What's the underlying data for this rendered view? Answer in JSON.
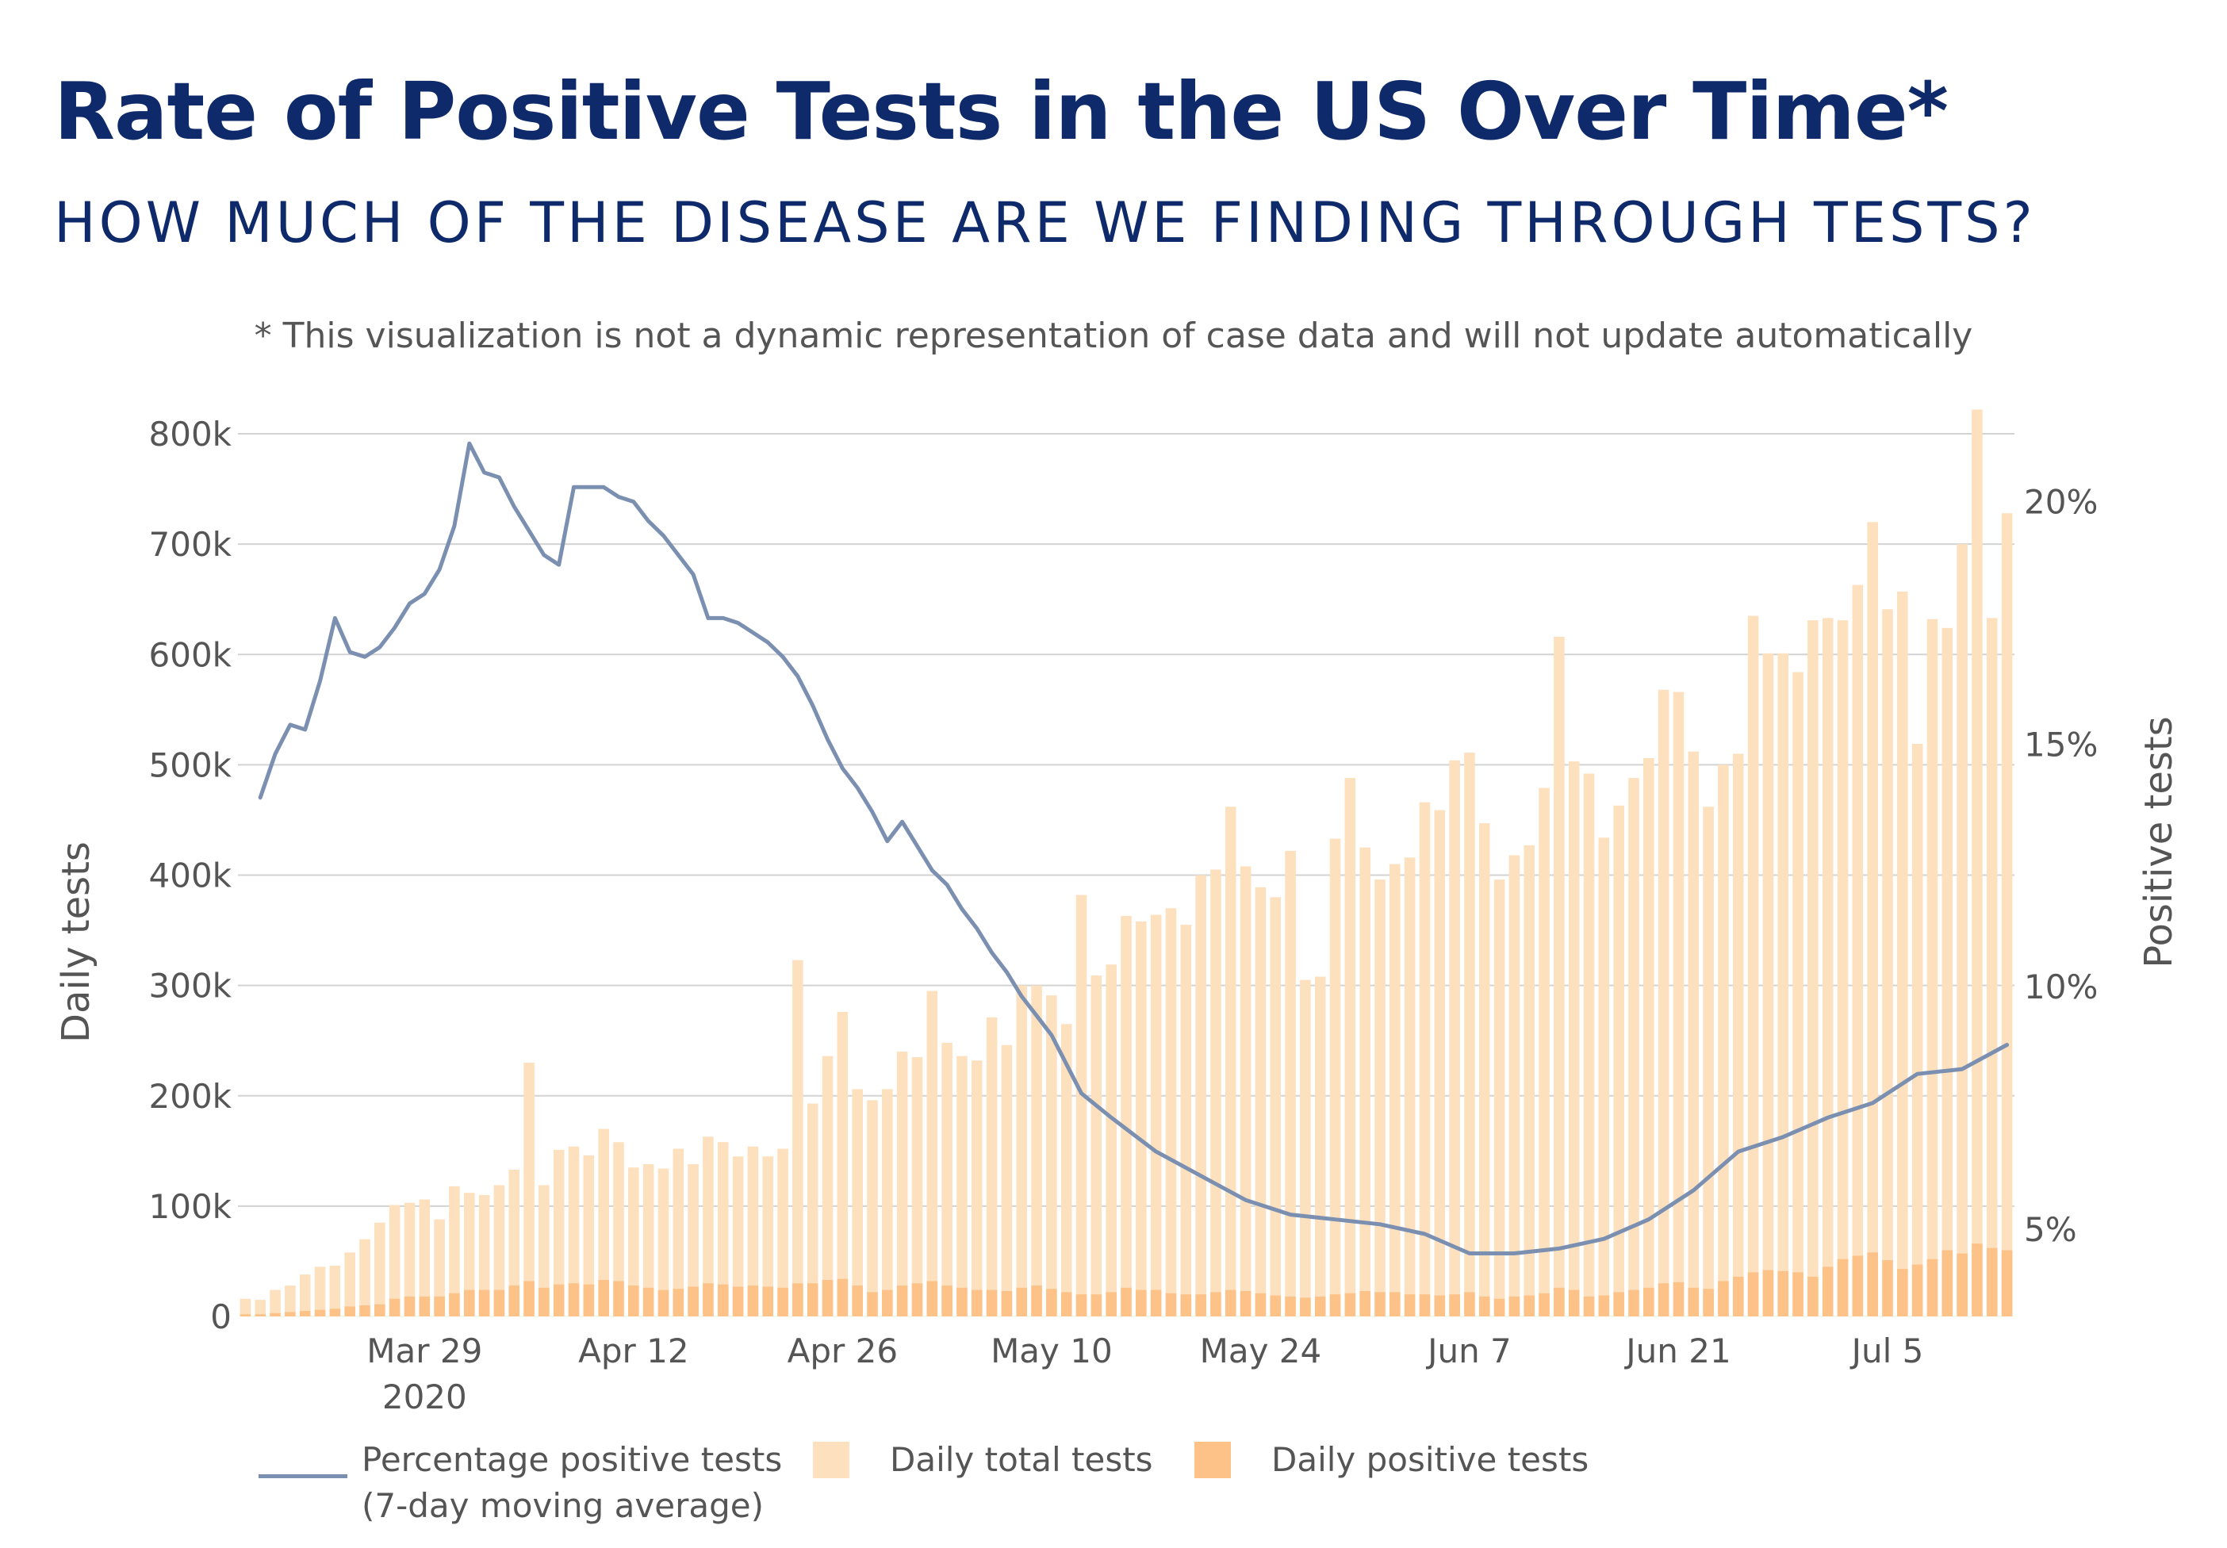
{
  "title": "Rate of Positive Tests in the US Over Time*",
  "subtitle": "HOW MUCH OF THE DISEASE ARE WE FINDING THROUGH TESTS?",
  "footnote": "* This visualization is not a dynamic representation of case data and will not update automatically",
  "legend": {
    "line_label_1": "Percentage positive tests",
    "line_label_2": "(7-day moving average)",
    "total_label": "Daily total tests",
    "positive_label": "Daily positive tests"
  },
  "colors": {
    "title": "#0f2a6b",
    "line": "#7b8fb1",
    "total_bar": "#fde0bd",
    "positive_bar": "#fcc287",
    "grid": "#d3d3d3",
    "axis_text": "#555555"
  },
  "chart_data": {
    "type": "bar",
    "x_start_date": "2020-03-17",
    "x_end_date": "2020-07-13",
    "xlabel": "",
    "x_ticks": [
      "Mar 29",
      "Apr 12",
      "Apr 26",
      "May 10",
      "May 24",
      "Jun 7",
      "Jun 21",
      "Jul 5"
    ],
    "x_tick_dates": [
      "2020-03-29",
      "2020-04-12",
      "2020-04-26",
      "2020-05-10",
      "2020-05-24",
      "2020-06-07",
      "2020-06-21",
      "2020-07-05"
    ],
    "x_tick_year_label": "2020",
    "ylabel": "Daily tests",
    "ylim": [
      0,
      800000
    ],
    "y_ticks": [
      "0",
      "100k",
      "200k",
      "300k",
      "400k",
      "500k",
      "600k",
      "700k",
      "800k"
    ],
    "y2label": "Positive tests",
    "y2lim": [
      3.2,
      21.4
    ],
    "y2_ticks": [
      "5%",
      "10%",
      "15%",
      "20%"
    ],
    "y2_tick_values": [
      5,
      10,
      15,
      20
    ],
    "grid": true,
    "legend_position": "bottom",
    "series": [
      {
        "name": "Daily total tests",
        "kind": "bar",
        "values": [
          16000,
          15000,
          24000,
          28000,
          38000,
          45000,
          46000,
          58000,
          70000,
          85000,
          101000,
          103000,
          106000,
          88000,
          118000,
          112000,
          110000,
          119000,
          133000,
          230000,
          119000,
          151000,
          154000,
          146000,
          170000,
          158000,
          135000,
          138000,
          134000,
          152000,
          138000,
          163000,
          158000,
          145000,
          154000,
          145000,
          152000,
          323000,
          193000,
          236000,
          276000,
          206000,
          196000,
          206000,
          240000,
          235000,
          295000,
          248000,
          236000,
          232000,
          271000,
          246000,
          300000,
          300000,
          291000,
          265000,
          382000,
          309000,
          319000,
          363000,
          358000,
          364000,
          370000,
          355000,
          400000,
          405000,
          462000,
          408000,
          389000,
          380000,
          422000,
          305000,
          308000,
          433000,
          488000,
          425000,
          396000,
          410000,
          416000,
          466000,
          459000,
          504000,
          511000,
          447000,
          396000,
          418000,
          427000,
          479000,
          616000,
          503000,
          492000,
          434000,
          463000,
          488000,
          506000,
          568000,
          566000,
          512000,
          462000,
          500000,
          510000,
          635000,
          601000,
          601000,
          584000,
          631000,
          633000,
          631000,
          663000,
          720000,
          641000,
          657000,
          519000,
          632000,
          624000,
          700000,
          822000,
          633000,
          728000
        ]
      },
      {
        "name": "Daily positive tests",
        "kind": "bar",
        "values": [
          2000,
          2000,
          3000,
          4000,
          5000,
          6000,
          7000,
          9000,
          10000,
          11000,
          16000,
          18000,
          18000,
          18000,
          21000,
          24000,
          24000,
          24000,
          28000,
          32000,
          26000,
          29000,
          30000,
          29000,
          33000,
          32000,
          28000,
          26000,
          24000,
          25000,
          27000,
          30000,
          29000,
          27000,
          28000,
          27000,
          26000,
          30000,
          30000,
          33000,
          34000,
          28000,
          22000,
          24000,
          28000,
          30000,
          32000,
          28000,
          26000,
          24000,
          24000,
          23000,
          26000,
          28000,
          25000,
          22000,
          20000,
          20000,
          22000,
          26000,
          24000,
          24000,
          21000,
          20000,
          20000,
          22000,
          24000,
          23000,
          21000,
          19000,
          18000,
          17000,
          18000,
          20000,
          21000,
          23000,
          22000,
          22000,
          20000,
          20000,
          19000,
          20000,
          22000,
          18000,
          16000,
          18000,
          19000,
          21000,
          26000,
          24000,
          18000,
          19000,
          22000,
          24000,
          26000,
          30000,
          31000,
          26000,
          25000,
          32000,
          36000,
          40000,
          42000,
          41000,
          40000,
          36000,
          45000,
          52000,
          55000,
          58000,
          51000,
          43000,
          47000,
          52000,
          60000,
          57000,
          66000,
          62000,
          60000
        ]
      },
      {
        "name": "Percentage positive tests (7-day moving average)",
        "kind": "line",
        "axis": "right",
        "x_dates": [
          "2020-03-18",
          "2020-03-19",
          "2020-03-20",
          "2020-03-21",
          "2020-03-22",
          "2020-03-23",
          "2020-03-24",
          "2020-03-25",
          "2020-03-26",
          "2020-03-27",
          "2020-03-28",
          "2020-03-29",
          "2020-03-30",
          "2020-03-31",
          "2020-04-01",
          "2020-04-02",
          "2020-04-03",
          "2020-04-04",
          "2020-04-05",
          "2020-04-06",
          "2020-04-07",
          "2020-04-08",
          "2020-04-09",
          "2020-04-10",
          "2020-04-11",
          "2020-04-12",
          "2020-04-13",
          "2020-04-14",
          "2020-04-15",
          "2020-04-16",
          "2020-04-17",
          "2020-04-18",
          "2020-04-19",
          "2020-04-20",
          "2020-04-21",
          "2020-04-22",
          "2020-04-23",
          "2020-04-24",
          "2020-04-25",
          "2020-04-26",
          "2020-04-27",
          "2020-04-28",
          "2020-04-29",
          "2020-04-30",
          "2020-05-01",
          "2020-05-02",
          "2020-05-03",
          "2020-05-04",
          "2020-05-05",
          "2020-05-06",
          "2020-05-07",
          "2020-05-08",
          "2020-05-09",
          "2020-05-10",
          "2020-05-12",
          "2020-05-14",
          "2020-05-17",
          "2020-05-20",
          "2020-05-23",
          "2020-05-26",
          "2020-05-29",
          "2020-06-01",
          "2020-06-04",
          "2020-06-07",
          "2020-06-10",
          "2020-06-13",
          "2020-06-16",
          "2020-06-19",
          "2020-06-22",
          "2020-06-25",
          "2020-06-28",
          "2020-07-01",
          "2020-07-04",
          "2020-07-07",
          "2020-07-10",
          "2020-07-13"
        ],
        "values": [
          13.9,
          14.8,
          15.4,
          15.3,
          16.3,
          17.6,
          16.9,
          16.8,
          17.0,
          17.4,
          17.9,
          18.1,
          18.6,
          19.5,
          21.2,
          20.6,
          20.5,
          19.9,
          19.4,
          18.9,
          18.7,
          20.3,
          20.3,
          20.3,
          20.1,
          20.0,
          19.6,
          19.3,
          18.9,
          18.5,
          17.6,
          17.6,
          17.5,
          17.3,
          17.1,
          16.8,
          16.4,
          15.8,
          15.1,
          14.5,
          14.1,
          13.6,
          13.0,
          13.4,
          12.9,
          12.4,
          12.1,
          11.6,
          11.2,
          10.7,
          10.3,
          9.8,
          9.4,
          9.0,
          7.8,
          7.3,
          6.6,
          6.1,
          5.6,
          5.3,
          5.2,
          5.1,
          4.9,
          4.5,
          4.5,
          4.6,
          4.8,
          5.2,
          5.8,
          6.6,
          6.9,
          7.3,
          7.6,
          8.2,
          8.3,
          8.8
        ]
      }
    ]
  }
}
